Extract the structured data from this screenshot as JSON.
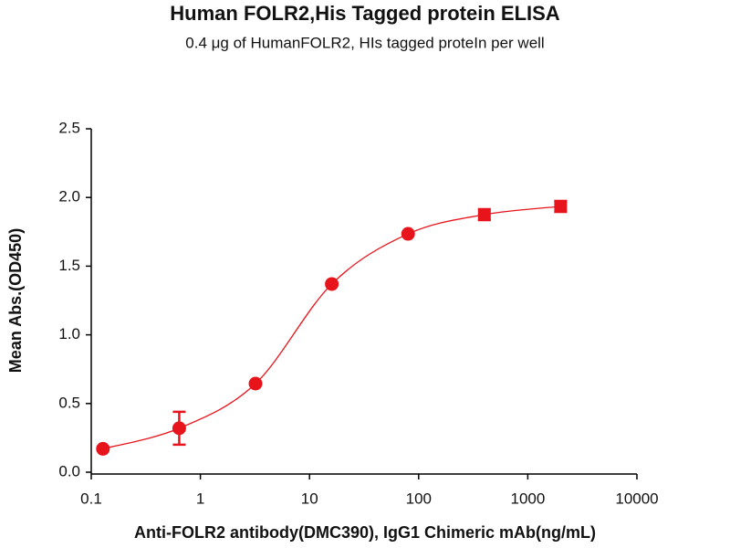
{
  "chart_data": {
    "type": "scatter",
    "title": "Human FOLR2,His Tagged protein ELISA",
    "subtitle": "0.4 μg of HumanFOLR2, HIs tagged proteIn per well",
    "x_label": "Anti-FOLR2 antibody(DMC390), IgG1 Chimeric mAb(ng/mL)",
    "y_label": "Mean Abs.(OD450)",
    "x_log": true,
    "xlim": [
      0.1,
      10000
    ],
    "xticks": [
      0.1,
      1,
      10,
      100,
      1000,
      10000
    ],
    "ylim": [
      0,
      2.5
    ],
    "yticks": [
      {
        "value": 0,
        "label": "0.0"
      },
      0.5,
      {
        "value": 1,
        "label": "1.0"
      },
      1.5,
      {
        "value": 2,
        "label": "2.0"
      },
      2.5
    ],
    "fit_curve": true,
    "series": [
      {
        "color": "#e8141c",
        "x": [
          0.128,
          0.64,
          3.2,
          16,
          80,
          400,
          2000
        ],
        "values": [
          0.17,
          0.32,
          0.645,
          1.37,
          1.735,
          1.875,
          1.935
        ],
        "errors": [
          0.01,
          0.12,
          0.01,
          0.01,
          0.01,
          0.04,
          0.04
        ],
        "markers": [
          "circle",
          "circle",
          "circle",
          "circle",
          "circle",
          "square",
          "square"
        ]
      }
    ]
  }
}
